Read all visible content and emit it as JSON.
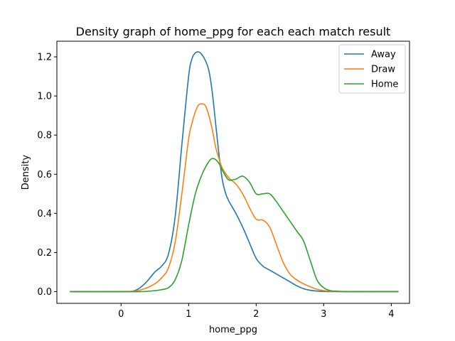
{
  "chart_data": {
    "type": "line",
    "title": "Density graph of home_ppg for each each match result",
    "xlabel": "home_ppg",
    "ylabel": "Density",
    "xlim": [
      -0.95,
      4.27
    ],
    "ylim": [
      -0.06,
      1.28
    ],
    "xticks": [
      0,
      1,
      2,
      3,
      4
    ],
    "yticks": [
      0.0,
      0.2,
      0.4,
      0.6,
      0.8,
      1.0,
      1.2
    ],
    "xtick_labels": [
      "0",
      "1",
      "2",
      "3",
      "4"
    ],
    "ytick_labels": [
      "0.0",
      "0.2",
      "0.4",
      "0.6",
      "0.8",
      "1.0",
      "1.2"
    ],
    "grid": false,
    "legend_position": "top-right",
    "series": [
      {
        "name": "Away",
        "color": "#1f77b4",
        "x": [
          -0.75,
          0.0,
          0.2,
          0.35,
          0.5,
          0.6,
          0.7,
          0.8,
          0.9,
          1.0,
          1.05,
          1.1,
          1.15,
          1.2,
          1.25,
          1.3,
          1.35,
          1.4,
          1.45,
          1.5,
          1.55,
          1.6,
          1.7,
          1.8,
          1.9,
          2.0,
          2.1,
          2.2,
          2.3,
          2.4,
          2.5,
          2.6,
          2.7,
          2.8,
          2.9,
          3.0,
          3.2,
          4.1
        ],
        "y": [
          0.0,
          0.0,
          0.005,
          0.04,
          0.1,
          0.13,
          0.19,
          0.38,
          0.75,
          1.1,
          1.19,
          1.22,
          1.225,
          1.21,
          1.18,
          1.13,
          1.02,
          0.86,
          0.7,
          0.57,
          0.5,
          0.46,
          0.4,
          0.33,
          0.25,
          0.17,
          0.13,
          0.11,
          0.09,
          0.07,
          0.05,
          0.03,
          0.015,
          0.007,
          0.003,
          0.001,
          0.0,
          0.0
        ]
      },
      {
        "name": "Draw",
        "color": "#ff7f0e",
        "x": [
          -0.75,
          0.0,
          0.2,
          0.35,
          0.5,
          0.6,
          0.7,
          0.8,
          0.9,
          1.0,
          1.05,
          1.1,
          1.15,
          1.2,
          1.25,
          1.3,
          1.35,
          1.4,
          1.45,
          1.5,
          1.6,
          1.7,
          1.8,
          1.9,
          2.0,
          2.1,
          2.2,
          2.3,
          2.4,
          2.5,
          2.6,
          2.7,
          2.8,
          2.9,
          3.0,
          3.1,
          3.3,
          4.1
        ],
        "y": [
          0.0,
          0.0,
          0.003,
          0.015,
          0.04,
          0.07,
          0.12,
          0.25,
          0.5,
          0.78,
          0.86,
          0.92,
          0.955,
          0.96,
          0.95,
          0.9,
          0.83,
          0.74,
          0.68,
          0.63,
          0.58,
          0.55,
          0.5,
          0.43,
          0.37,
          0.365,
          0.33,
          0.24,
          0.15,
          0.09,
          0.06,
          0.04,
          0.025,
          0.012,
          0.005,
          0.002,
          0.0,
          0.0
        ]
      },
      {
        "name": "Home",
        "color": "#2ca02c",
        "x": [
          -0.75,
          0.0,
          0.3,
          0.5,
          0.6,
          0.7,
          0.8,
          0.9,
          1.0,
          1.1,
          1.2,
          1.3,
          1.35,
          1.4,
          1.45,
          1.5,
          1.55,
          1.6,
          1.7,
          1.8,
          1.9,
          2.0,
          2.1,
          2.2,
          2.3,
          2.4,
          2.5,
          2.6,
          2.7,
          2.8,
          2.9,
          3.0,
          3.1,
          3.2,
          3.3,
          3.5,
          4.1
        ],
        "y": [
          0.0,
          0.0,
          0.0,
          0.005,
          0.01,
          0.02,
          0.06,
          0.16,
          0.34,
          0.5,
          0.6,
          0.665,
          0.68,
          0.675,
          0.655,
          0.62,
          0.59,
          0.57,
          0.575,
          0.59,
          0.56,
          0.5,
          0.5,
          0.5,
          0.46,
          0.41,
          0.36,
          0.31,
          0.26,
          0.16,
          0.06,
          0.02,
          0.005,
          0.002,
          0.0,
          0.0,
          0.0
        ]
      }
    ]
  }
}
